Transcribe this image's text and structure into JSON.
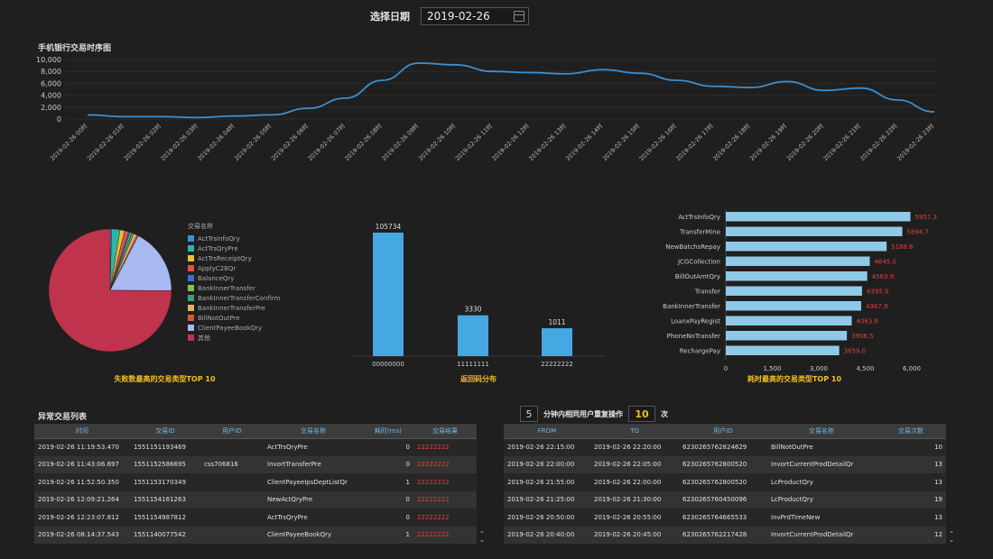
{
  "date_picker": {
    "label": "选择日期",
    "value": "2019-02-26",
    "icon": "calendar-icon"
  },
  "timeline": {
    "title": "手机银行交易时序图",
    "chart_data": {
      "type": "line",
      "ylim": [
        0,
        10000
      ],
      "y_ticks": [
        "10,000",
        "8,000",
        "6,000",
        "4,000",
        "2,000",
        "0"
      ],
      "x": [
        "2019-02-26 00时",
        "2019-02-26 01时",
        "2019-02-26 02时",
        "2019-02-26 03时",
        "2019-02-26 04时",
        "2019-02-26 05时",
        "2019-02-26 06时",
        "2019-02-26 07时",
        "2019-02-26 08时",
        "2019-02-26 09时",
        "2019-02-26 10时",
        "2019-02-26 11时",
        "2019-02-26 12时",
        "2019-02-26 13时",
        "2019-02-26 14时",
        "2019-02-26 15时",
        "2019-02-26 16时",
        "2019-02-26 17时",
        "2019-02-26 18时",
        "2019-02-26 19时",
        "2019-02-26 20时",
        "2019-02-26 21时",
        "2019-02-26 22时",
        "2019-02-26 23时"
      ],
      "values": [
        700,
        400,
        400,
        250,
        500,
        700,
        1800,
        3500,
        6500,
        9400,
        9100,
        8000,
        7800,
        7600,
        8300,
        7700,
        6500,
        5500,
        5300,
        6300,
        4800,
        5200,
        3200,
        1200
      ],
      "color": "#3a8fd0"
    }
  },
  "pie": {
    "caption": "失败数最高的交易类型TOP 10",
    "legend_title": "交易名称",
    "chart_data": {
      "type": "pie",
      "labels": [
        "ActTrsInfoQry",
        "ActTrsQryPre",
        "ActTrsReceiptQry",
        "ApplyC2BQr",
        "BalanceQry",
        "BankInnerTransfer",
        "BankInnerTransferConfirm",
        "BankInnerTransferPre",
        "BillNotOutPre",
        "ClientPayeeBookQry",
        "其他"
      ],
      "values": [
        0.4,
        2.2,
        1.2,
        1.1,
        0.4,
        0.4,
        0.6,
        0.9,
        0.4,
        17.5,
        74.9
      ],
      "colors": [
        "#3a8fd0",
        "#2fb5a8",
        "#e8c030",
        "#e05050",
        "#3a6fd8",
        "#7fc060",
        "#3aa080",
        "#e8b060",
        "#d05a3a",
        "#a8b8f0",
        "#c0334c"
      ]
    }
  },
  "response_bar": {
    "caption": "返回码分布",
    "chart_data": {
      "type": "bar",
      "categories": [
        "00000000",
        "11111111",
        "22222222"
      ],
      "values": [
        105734,
        3330,
        1011
      ],
      "data_labels": [
        "105734",
        "3330",
        "1011"
      ],
      "color": "#45a8e0"
    }
  },
  "duration_bar": {
    "caption": "耗时最高的交易类型TOP 10",
    "chart_data": {
      "type": "bar",
      "orientation": "horizontal",
      "categories": [
        "ActTrsInfoQry",
        "TransferMine",
        "NewBatchsRepay",
        "JCGCollection",
        "BillOutAmtQry",
        "Transfer",
        "BankInnerTransfer",
        "LoanxPayRegist",
        "PhoneNoTransfer",
        "RechargePay"
      ],
      "values": [
        5957.3,
        5694.7,
        5188.6,
        4645.0,
        4563.9,
        4395.9,
        4367.9,
        4063.8,
        3906.5,
        3659.0
      ],
      "data_labels": [
        "5957.3",
        "5694.7",
        "5188.6",
        "4645.0",
        "4563.9",
        "4395.9",
        "4367.9",
        "4063.8",
        "3906.5",
        "3659.0"
      ],
      "x_ticks": [
        "0",
        "1,500",
        "3,000",
        "4,500",
        "6,000"
      ],
      "xlim": [
        0,
        6000
      ],
      "color": "#8ecae8",
      "label_color": "#e04040"
    }
  },
  "anomaly_table": {
    "title": "异常交易列表",
    "headers": [
      "时间",
      "交易ID",
      "用户ID",
      "交易名称",
      "耗时(ms)",
      "交易结果"
    ],
    "rows": [
      [
        "2019-02-26 11:19:53.470",
        "1551151193469",
        "",
        "ActTrsQryPre",
        "0",
        "22222222"
      ],
      [
        "2019-02-26 11:43:06.697",
        "1551152586695",
        "css706816",
        "InvortTransferPre",
        "0",
        "22222222"
      ],
      [
        "2019-02-26 11:52:50.350",
        "1551153170349",
        "",
        "ClientPayeeIpsDeptListQr",
        "1",
        "22222222"
      ],
      [
        "2019-02-26 12:09:21.264",
        "1551154161263",
        "",
        "NewActQryPre",
        "0",
        "22222222"
      ],
      [
        "2019-02-26 12:23:07.812",
        "1551154987812",
        "",
        "ActTrsQryPre",
        "0",
        "22222222"
      ],
      [
        "2019-02-26 08:14:37.543",
        "1551140077542",
        "",
        "ClientPayeeBookQry",
        "1",
        "22222222"
      ]
    ],
    "result_color": "#e04040"
  },
  "repeat_table": {
    "minutes": "5",
    "condition_text": "分钟内相同用户重复操作",
    "times": "10",
    "times_unit": "次",
    "headers": [
      "FROM",
      "TO",
      "用户ID",
      "交易名称",
      "交易次数"
    ],
    "rows": [
      [
        "2019-02-26 22:15:00",
        "2019-02-26 22:20:00",
        "6230265762824629",
        "BillNotOutPre",
        "10"
      ],
      [
        "2019-02-26 22:00:00",
        "2019-02-26 22:05:00",
        "6230265762800520",
        "InvortCurrentProdDetailQr",
        "13"
      ],
      [
        "2019-02-26 21:55:00",
        "2019-02-26 22:00:00",
        "6230265762800520",
        "LcProductQry",
        "13"
      ],
      [
        "2019-02-26 21:25:00",
        "2019-02-26 21:30:00",
        "6230265760450096",
        "LcProductQry",
        "19"
      ],
      [
        "2019-02-26 20:50:00",
        "2019-02-26 20:55:00",
        "6230265764665533",
        "InvPrdTimeNew",
        "13"
      ],
      [
        "2019-02-26 20:40:00",
        "2019-02-26 20:45:00",
        "6230265762217428",
        "InvortCurrentProdDetailQr",
        "12"
      ]
    ]
  }
}
